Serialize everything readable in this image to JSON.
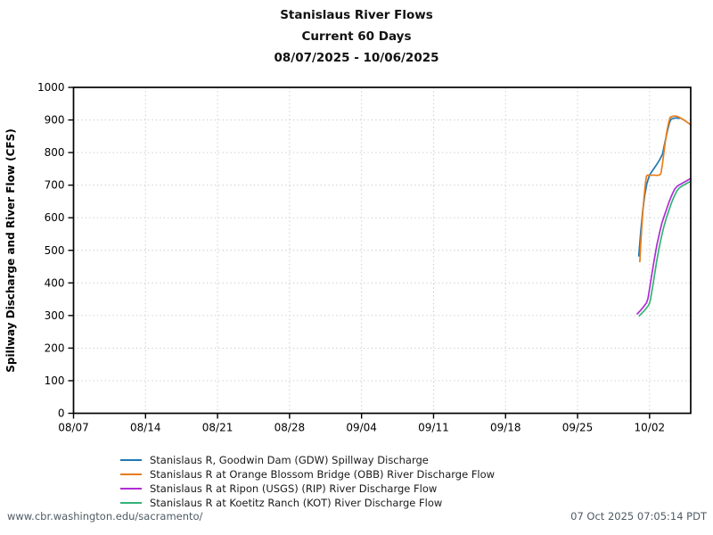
{
  "title": {
    "line1": "Stanislaus River Flows",
    "line2": "Current 60 Days",
    "line3": "08/07/2025 - 10/06/2025"
  },
  "footer": {
    "left": "www.cbr.washington.edu/sacramento/",
    "right": "07 Oct 2025 07:05:14 PDT"
  },
  "chart_data": {
    "type": "line",
    "title": "Stanislaus River Flows / Current 60 Days / 08/07/2025 - 10/06/2025",
    "xlabel": "",
    "ylabel": "Spillway Discharge and River Flow (CFS)",
    "ylim": [
      0,
      1000
    ],
    "y_ticks": [
      0,
      100,
      200,
      300,
      400,
      500,
      600,
      700,
      800,
      900,
      1000
    ],
    "x_units": "days since 08/07/2025",
    "x_days_range": [
      0,
      60
    ],
    "x_ticks": [
      {
        "day": 0,
        "label": "08/07"
      },
      {
        "day": 7,
        "label": "08/14"
      },
      {
        "day": 14,
        "label": "08/21"
      },
      {
        "day": 21,
        "label": "08/28"
      },
      {
        "day": 28,
        "label": "09/04"
      },
      {
        "day": 35,
        "label": "09/11"
      },
      {
        "day": 42,
        "label": "09/18"
      },
      {
        "day": 49,
        "label": "09/25"
      },
      {
        "day": 56,
        "label": "10/02"
      }
    ],
    "grid": "dotted, both axes, at major ticks",
    "legend_position": "below plot, left-aligned",
    "note": "All series have no data until ~10/01; flows ramp up over the final 5 days.",
    "series": [
      {
        "name": "Stanislaus R, Goodwin Dam (GDW) Spillway Discharge",
        "color": "#1f77b4",
        "points": [
          [
            54.95,
            483
          ],
          [
            55.15,
            560
          ],
          [
            55.35,
            625
          ],
          [
            55.55,
            672
          ],
          [
            55.75,
            706
          ],
          [
            55.95,
            727
          ],
          [
            56.1,
            736
          ],
          [
            56.4,
            750
          ],
          [
            56.7,
            764
          ],
          [
            57.0,
            779
          ],
          [
            57.25,
            795
          ],
          [
            57.5,
            832
          ],
          [
            57.75,
            868
          ],
          [
            57.95,
            893
          ],
          [
            58.1,
            903
          ],
          [
            58.4,
            906
          ],
          [
            58.7,
            906
          ],
          [
            58.95,
            905
          ]
        ]
      },
      {
        "name": "Stanislaus R at Orange Blossom Bridge (OBB) River Discharge Flow",
        "color": "#e87d1a",
        "points": [
          [
            55.05,
            465
          ],
          [
            55.15,
            525
          ],
          [
            55.3,
            600
          ],
          [
            55.45,
            660
          ],
          [
            55.6,
            706
          ],
          [
            55.7,
            728
          ],
          [
            55.8,
            731
          ],
          [
            56.1,
            730
          ],
          [
            56.4,
            731
          ],
          [
            56.7,
            730
          ],
          [
            56.95,
            731
          ],
          [
            57.1,
            735
          ],
          [
            57.25,
            765
          ],
          [
            57.45,
            815
          ],
          [
            57.65,
            860
          ],
          [
            57.85,
            892
          ],
          [
            58.0,
            908
          ],
          [
            58.3,
            912
          ],
          [
            58.6,
            912
          ],
          [
            58.85,
            909
          ],
          [
            59.2,
            903
          ],
          [
            59.6,
            894
          ],
          [
            60.0,
            885
          ]
        ]
      },
      {
        "name": "Stanislaus R at Ripon (USGS) (RIP) River Discharge Flow",
        "color": "#b02cd6",
        "points": [
          [
            54.8,
            305
          ],
          [
            55.1,
            315
          ],
          [
            55.4,
            326
          ],
          [
            55.7,
            339
          ],
          [
            55.85,
            353
          ],
          [
            56.0,
            382
          ],
          [
            56.2,
            422
          ],
          [
            56.45,
            470
          ],
          [
            56.7,
            515
          ],
          [
            56.95,
            551
          ],
          [
            57.2,
            584
          ],
          [
            57.45,
            608
          ],
          [
            57.7,
            631
          ],
          [
            57.95,
            653
          ],
          [
            58.2,
            672
          ],
          [
            58.45,
            688
          ],
          [
            58.7,
            697
          ],
          [
            59.0,
            703
          ],
          [
            59.35,
            709
          ],
          [
            59.65,
            714
          ],
          [
            60.0,
            721
          ]
        ]
      },
      {
        "name": "Stanislaus R at Koetitz Ranch (KOT) River Discharge Flow",
        "color": "#33b377",
        "points": [
          [
            55.0,
            299
          ],
          [
            55.3,
            309
          ],
          [
            55.6,
            319
          ],
          [
            55.9,
            331
          ],
          [
            56.05,
            343
          ],
          [
            56.2,
            369
          ],
          [
            56.4,
            409
          ],
          [
            56.65,
            458
          ],
          [
            56.9,
            503
          ],
          [
            57.15,
            541
          ],
          [
            57.4,
            574
          ],
          [
            57.65,
            601
          ],
          [
            57.9,
            625
          ],
          [
            58.15,
            647
          ],
          [
            58.4,
            666
          ],
          [
            58.65,
            682
          ],
          [
            58.9,
            692
          ],
          [
            59.25,
            699
          ],
          [
            59.6,
            705
          ],
          [
            60.0,
            712
          ]
        ]
      }
    ]
  }
}
